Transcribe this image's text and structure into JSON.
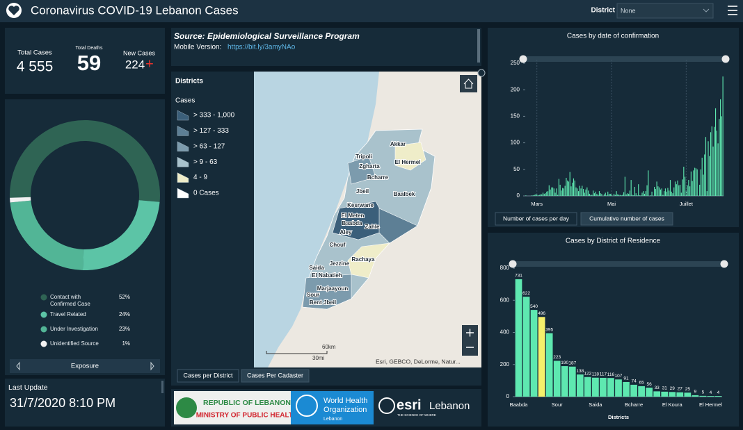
{
  "header": {
    "title": "Coronavirus COVID-19 Lebanon Cases",
    "district_label": "District",
    "district_value": "None"
  },
  "stats": {
    "total_cases": {
      "label": "Total Cases",
      "value": "4 555"
    },
    "total_deaths": {
      "label": "Total Deaths",
      "value": "59"
    },
    "new_cases": {
      "label": "New Cases",
      "value": "224",
      "sign": "+"
    }
  },
  "source": {
    "text": "Source: Epidemiological Surveillance Program",
    "mobile_label": "Mobile Version:",
    "mobile_link": "https://bit.ly/3amyNAo"
  },
  "map": {
    "legend_title": "Districts",
    "legend_subtitle": "Cases",
    "legend": [
      {
        "label": "> 333 - 1,000",
        "color": "#3b5f7a"
      },
      {
        "label": "> 127 - 333",
        "color": "#5d7f95"
      },
      {
        "label": "> 63 - 127",
        "color": "#7c9bad"
      },
      {
        "label": "> 9 - 63",
        "color": "#a9c2cc"
      },
      {
        "label": "4 - 9",
        "color": "#efedc9"
      },
      {
        "label": "0 Cases",
        "color": "#ffffff"
      }
    ],
    "labels": [
      "Akkar",
      "Tripoli",
      "Zgharta",
      "El Hermel",
      "Bcharre",
      "Jbeil",
      "Baalbek",
      "Kesrwane",
      "El Meten",
      "Baabda",
      "Zahle",
      "Aley",
      "Chouf",
      "Rachaya",
      "Jezzine",
      "Saida",
      "El Nabatieh",
      "Marjaayoun",
      "Sour",
      "Bent Jbeil"
    ],
    "scale_km": "60km",
    "scale_mi": "30mi",
    "attribution": "Esri, GEBCO, DeLorme, Natur...",
    "tabs": [
      "Cases per District",
      "Cases Per Cadaster"
    ]
  },
  "last_update": {
    "label": "Last Update",
    "value": "31/7/2020 8:10 PM"
  },
  "logos": {
    "moph_line1": "REPUBLIC OF LEBANON",
    "moph_line2": "MINISTRY OF PUBLIC HEALTH",
    "who_line1": "World Health",
    "who_line2": "Organization",
    "who_line3": "Lebanon",
    "esri": "esri",
    "esri_country": "Lebanon",
    "esri_tagline": "THE SCIENCE OF WHERE"
  },
  "chart_data": [
    {
      "type": "pie",
      "title": "Exposure",
      "categories": [
        "Contact with Confirmed Case",
        "Travel Related",
        "Under Investigation",
        "Unidentified Source"
      ],
      "values": [
        52,
        24,
        23,
        1
      ],
      "value_labels": [
        "52%",
        "24%",
        "23%",
        "1%"
      ],
      "colors": [
        "#2f6454",
        "#5cc4a6",
        "#52b596",
        "#f2f2f2"
      ]
    },
    {
      "type": "bar",
      "title": "Cases by  date of confirmation",
      "color": "#5ee8b0",
      "grid": false,
      "ylim": [
        0,
        250
      ],
      "yticks": [
        0,
        50,
        100,
        150,
        200,
        250
      ],
      "categories": [
        null,
        null,
        null,
        null,
        null,
        null,
        null,
        null,
        null,
        "Mars",
        null,
        null,
        null,
        null,
        null,
        null,
        null,
        null,
        null,
        null,
        null,
        null,
        null,
        null,
        null,
        null,
        null,
        null,
        null,
        null,
        null,
        null,
        null,
        null,
        null,
        null,
        null,
        null,
        null,
        null,
        null,
        null,
        null,
        null,
        null,
        null,
        null,
        null,
        null,
        null,
        null,
        null,
        null,
        null,
        null,
        null,
        null,
        null,
        null,
        null,
        null,
        null,
        null,
        null,
        null,
        null,
        null,
        null,
        null,
        null,
        "Mai",
        null,
        null,
        null,
        null,
        null,
        null,
        null,
        null,
        null,
        null,
        null,
        null,
        null,
        null,
        null,
        null,
        null,
        null,
        null,
        null,
        null,
        null,
        null,
        null,
        null,
        null,
        null,
        null,
        null,
        null,
        null,
        null,
        null,
        null,
        null,
        null,
        null,
        null,
        null,
        null,
        null,
        null,
        null,
        null,
        null,
        null,
        null,
        null,
        null,
        null,
        null,
        null,
        null,
        null,
        null,
        null,
        null,
        null,
        null,
        null,
        "Juillet",
        null,
        null,
        null,
        null,
        null,
        null,
        null,
        null,
        null,
        null,
        null,
        null,
        null,
        null,
        null,
        null,
        null,
        null,
        null,
        null,
        null,
        null,
        null,
        null,
        null,
        null,
        null,
        null,
        null,
        null
      ],
      "values": [
        1,
        0,
        0,
        0,
        0,
        1,
        1,
        2,
        3,
        3,
        1,
        2,
        3,
        3,
        6,
        4,
        5,
        8,
        9,
        20,
        12,
        16,
        16,
        14,
        6,
        14,
        2,
        32,
        21,
        10,
        15,
        14,
        19,
        34,
        29,
        27,
        45,
        18,
        25,
        33,
        29,
        16,
        14,
        9,
        19,
        14,
        19,
        13,
        6,
        12,
        16,
        10,
        4,
        2,
        2,
        10,
        5,
        8,
        4,
        2,
        9,
        5,
        4,
        0,
        3,
        6,
        1,
        8,
        4,
        4,
        4,
        0,
        4,
        2,
        9,
        3,
        2,
        2,
        1,
        2,
        7,
        36,
        3,
        5,
        4,
        10,
        30,
        2,
        1,
        17,
        5,
        1,
        22,
        1,
        1,
        6,
        9,
        4,
        9,
        20,
        48,
        0,
        1,
        8,
        0,
        17,
        13,
        27,
        18,
        16,
        12,
        14,
        2,
        9,
        14,
        8,
        15,
        10,
        30,
        8,
        5,
        16,
        27,
        22,
        29,
        20,
        21,
        6,
        31,
        55,
        36,
        10,
        20,
        30,
        18,
        46,
        28,
        48,
        53,
        52,
        50,
        0,
        21,
        50,
        72,
        40,
        78,
        111,
        9,
        103,
        75,
        120,
        131,
        93,
        130,
        165,
        123,
        99,
        145,
        182,
        150,
        225
      ],
      "tabs": [
        "Number of cases per day",
        "Cumulative number of cases"
      ]
    },
    {
      "type": "bar",
      "title": "Cases by District of Residence",
      "x_label": "Districts",
      "grid": false,
      "ylim": [
        0,
        800
      ],
      "yticks": [
        0,
        200,
        400,
        600,
        800
      ],
      "categories": [
        "Baabda",
        null,
        null,
        null,
        null,
        "Sour",
        null,
        null,
        null,
        null,
        "Saida",
        null,
        null,
        null,
        null,
        "Bcharre",
        null,
        null,
        null,
        null,
        "El Koura",
        null,
        null,
        null,
        null,
        "El Hermel",
        null
      ],
      "values": [
        731,
        622,
        540,
        496,
        395,
        223,
        190,
        187,
        138,
        122,
        118,
        117,
        116,
        107,
        91,
        74,
        65,
        56,
        33,
        31,
        29,
        27,
        25,
        9,
        5,
        4,
        4
      ],
      "colors": [
        "#5ee8b0",
        "#5ee8b0",
        "#5ee8b0",
        "#f5f06b",
        "#5ee8b0",
        "#5ee8b0",
        "#5ee8b0",
        "#5ee8b0",
        "#5ee8b0",
        "#5ee8b0",
        "#5ee8b0",
        "#5ee8b0",
        "#5ee8b0",
        "#5ee8b0",
        "#5ee8b0",
        "#5ee8b0",
        "#5ee8b0",
        "#5ee8b0",
        "#5ee8b0",
        "#5ee8b0",
        "#5ee8b0",
        "#5ee8b0",
        "#5ee8b0",
        "#5ee8b0",
        "#5ee8b0",
        "#5ee8b0",
        "#5ee8b0"
      ]
    }
  ]
}
